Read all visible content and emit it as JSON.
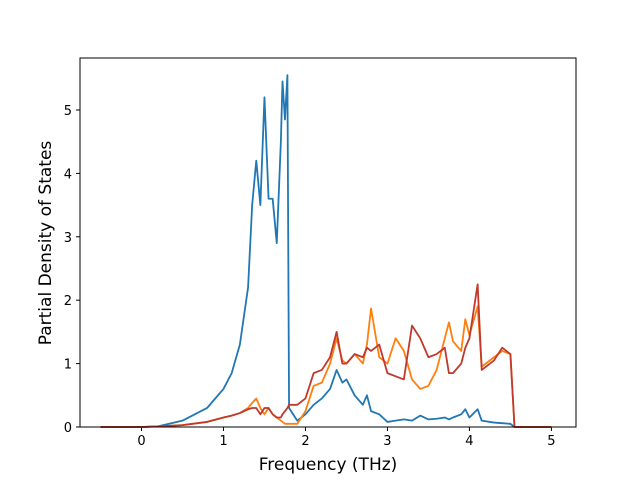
{
  "chart_data": {
    "type": "line",
    "x_label": "Frequency (THz)",
    "y_label": "Partial Density of States",
    "x": [
      -0.5,
      0,
      0.2,
      0.5,
      0.8,
      1.0,
      1.1,
      1.2,
      1.3,
      1.35,
      1.4,
      1.45,
      1.5,
      1.55,
      1.6,
      1.65,
      1.7,
      1.72,
      1.75,
      1.78,
      1.8,
      1.9,
      2.0,
      2.1,
      2.2,
      2.3,
      2.38,
      2.45,
      2.5,
      2.6,
      2.7,
      2.75,
      2.8,
      2.9,
      3.0,
      3.1,
      3.2,
      3.3,
      3.4,
      3.5,
      3.6,
      3.7,
      3.75,
      3.8,
      3.9,
      3.95,
      4.0,
      4.1,
      4.15,
      4.3,
      4.4,
      4.5,
      4.55,
      5.0
    ],
    "series": [
      {
        "color": "#1f77b4",
        "values": [
          0,
          0,
          0.01,
          0.1,
          0.3,
          0.6,
          0.85,
          1.3,
          2.2,
          3.5,
          4.2,
          3.5,
          5.2,
          3.6,
          3.6,
          2.9,
          4.5,
          5.45,
          4.85,
          5.55,
          0.3,
          0.1,
          0.2,
          0.35,
          0.45,
          0.6,
          0.9,
          0.7,
          0.75,
          0.5,
          0.35,
          0.5,
          0.25,
          0.2,
          0.08,
          0.1,
          0.12,
          0.1,
          0.18,
          0.12,
          0.13,
          0.15,
          0.12,
          0.15,
          0.2,
          0.28,
          0.15,
          0.28,
          0.1,
          0.07,
          0.06,
          0.05,
          0,
          0
        ]
      },
      {
        "color": "#ff7f0e",
        "values": [
          0,
          0,
          0.01,
          0.03,
          0.08,
          0.15,
          0.18,
          0.22,
          0.3,
          0.38,
          0.45,
          0.3,
          0.2,
          0.3,
          0.2,
          0.15,
          0.1,
          0.08,
          0.05,
          0.05,
          0.05,
          0.05,
          0.25,
          0.65,
          0.7,
          1.0,
          1.4,
          1.05,
          1.0,
          1.15,
          1.0,
          1.3,
          1.87,
          1.1,
          1.0,
          1.4,
          1.2,
          0.75,
          0.6,
          0.65,
          0.9,
          1.4,
          1.65,
          1.35,
          1.2,
          1.7,
          1.45,
          1.9,
          0.95,
          1.1,
          1.2,
          1.15,
          0,
          0
        ]
      },
      {
        "color": "#c0392b",
        "values": [
          0,
          0,
          0.01,
          0.03,
          0.08,
          0.15,
          0.18,
          0.22,
          0.28,
          0.3,
          0.3,
          0.2,
          0.3,
          0.3,
          0.2,
          0.15,
          0.15,
          0.2,
          0.25,
          0.3,
          0.35,
          0.35,
          0.45,
          0.85,
          0.9,
          1.1,
          1.5,
          1.0,
          1.0,
          1.15,
          1.1,
          1.25,
          1.2,
          1.3,
          0.85,
          0.8,
          0.75,
          1.6,
          1.4,
          1.1,
          1.15,
          1.25,
          0.85,
          0.85,
          1.0,
          1.25,
          1.4,
          2.25,
          0.9,
          1.05,
          1.25,
          1.15,
          0,
          0
        ]
      }
    ],
    "xlim": [
      -0.75,
      5.3
    ],
    "ylim": [
      0,
      5.82
    ],
    "xticks": [
      0,
      1,
      2,
      3,
      4,
      5
    ],
    "yticks": [
      0,
      1,
      2,
      3,
      4,
      5
    ]
  }
}
